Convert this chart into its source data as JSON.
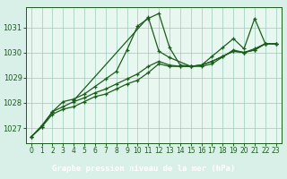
{
  "background_color": "#d8f0e8",
  "plot_bg_color": "#e8f8f0",
  "grid_color": "#99ccbb",
  "line_color": "#1a5c1a",
  "footer_bg": "#2a6e2a",
  "footer_text_color": "#ffffff",
  "xlabel": "Graphe pression niveau de la mer (hPa)",
  "xlim": [
    -0.5,
    23.5
  ],
  "ylim": [
    1026.4,
    1031.8
  ],
  "yticks": [
    1027,
    1028,
    1029,
    1030,
    1031
  ],
  "xticks": [
    0,
    1,
    2,
    3,
    4,
    5,
    6,
    7,
    8,
    9,
    10,
    11,
    12,
    13,
    14,
    15,
    16,
    17,
    18,
    19,
    20,
    21,
    22,
    23
  ],
  "series": [
    {
      "x": [
        0,
        1,
        2,
        3,
        4,
        5,
        6,
        7,
        8,
        9,
        10,
        11,
        12,
        13,
        14,
        15,
        16,
        17,
        18,
        19,
        20,
        21,
        22,
        23
      ],
      "y": [
        1026.65,
        1027.1,
        1027.65,
        1027.85,
        1028.05,
        1028.2,
        1028.4,
        1028.55,
        1028.75,
        1028.95,
        1029.15,
        1029.45,
        1029.65,
        1029.5,
        1029.45,
        1029.45,
        1029.5,
        1029.65,
        1029.85,
        1030.05,
        1030.0,
        1030.1,
        1030.35,
        1030.35
      ]
    },
    {
      "x": [
        0,
        1,
        2,
        3,
        4,
        5,
        6,
        7,
        8,
        9,
        10,
        11,
        12,
        13,
        14,
        15,
        16,
        17,
        18,
        19,
        20,
        21,
        22,
        23
      ],
      "y": [
        1026.65,
        1027.05,
        1027.55,
        1027.75,
        1027.85,
        1028.05,
        1028.25,
        1028.35,
        1028.55,
        1028.75,
        1028.9,
        1029.2,
        1029.55,
        1029.45,
        1029.45,
        1029.45,
        1029.5,
        1029.65,
        1029.85,
        1030.05,
        1030.0,
        1030.1,
        1030.35,
        1030.35
      ]
    },
    {
      "x": [
        0,
        1,
        2,
        3,
        4,
        5,
        6,
        7,
        8,
        9,
        10,
        11,
        12,
        13,
        14,
        15,
        16,
        17,
        19,
        20,
        21,
        22,
        23
      ],
      "y": [
        1026.65,
        1027.05,
        1027.65,
        1028.05,
        1028.15,
        1028.35,
        1028.65,
        1028.95,
        1029.25,
        1030.1,
        1031.05,
        1031.35,
        1031.55,
        1030.2,
        1029.5,
        1029.45,
        1029.45,
        1029.55,
        1030.1,
        1030.0,
        1030.15,
        1030.35,
        1030.35
      ]
    },
    {
      "x": [
        4,
        11,
        12,
        13,
        15,
        16,
        17,
        18,
        19,
        20,
        21,
        22,
        23
      ],
      "y": [
        1028.1,
        1031.4,
        1030.05,
        1029.8,
        1029.45,
        1029.5,
        1029.85,
        1030.2,
        1030.55,
        1030.15,
        1031.35,
        1030.35,
        1030.35
      ]
    }
  ],
  "marker": "+",
  "markersize": 3.5,
  "linewidth": 0.9,
  "tick_fontsize": 5.5,
  "xlabel_fontsize": 6.5
}
